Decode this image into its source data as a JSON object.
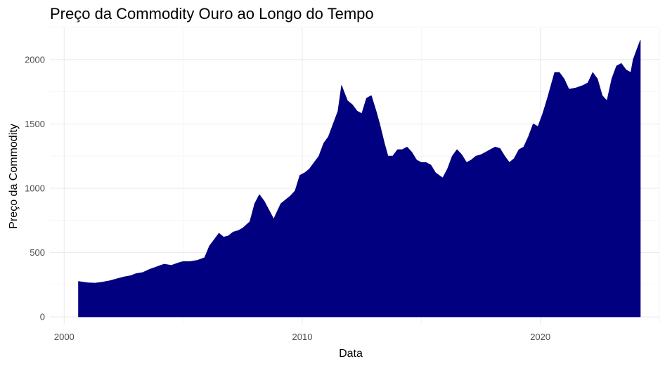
{
  "chart_data": {
    "type": "area",
    "title": "Preço da Commodity Ouro ao Longo do Tempo",
    "xlabel": "Data",
    "ylabel": "Preço da Commodity",
    "x_ticks": [
      "2000",
      "2010",
      "2020"
    ],
    "y_ticks": [
      0,
      500,
      1000,
      1500,
      2000
    ],
    "xlim": [
      1999.4,
      2025.0
    ],
    "ylim": [
      -60,
      2245
    ],
    "grid": true,
    "legend": "none",
    "fill_color": "#000080",
    "series": [
      {
        "x": [
          2000.6,
          2000.8,
          2001.0,
          2001.3,
          2001.6,
          2001.9,
          2002.2,
          2002.5,
          2002.8,
          2003.0,
          2003.3,
          2003.6,
          2003.9,
          2004.2,
          2004.5,
          2004.8,
          2005.0,
          2005.3,
          2005.6,
          2005.9,
          2006.1,
          2006.3,
          2006.5,
          2006.7,
          2006.9,
          2007.1,
          2007.3,
          2007.5,
          2007.8,
          2008.0,
          2008.2,
          2008.4,
          2008.6,
          2008.8,
          2008.9,
          2009.1,
          2009.3,
          2009.5,
          2009.7,
          2009.9,
          2010.1,
          2010.3,
          2010.5,
          2010.7,
          2010.9,
          2011.1,
          2011.3,
          2011.5,
          2011.65,
          2011.75,
          2011.9,
          2012.1,
          2012.3,
          2012.5,
          2012.7,
          2012.9,
          2013.1,
          2013.25,
          2013.45,
          2013.6,
          2013.8,
          2014.0,
          2014.2,
          2014.4,
          2014.6,
          2014.8,
          2015.0,
          2015.2,
          2015.4,
          2015.6,
          2015.9,
          2016.1,
          2016.3,
          2016.5,
          2016.7,
          2016.9,
          2017.1,
          2017.3,
          2017.5,
          2017.7,
          2017.9,
          2018.1,
          2018.3,
          2018.5,
          2018.7,
          2018.9,
          2019.1,
          2019.3,
          2019.5,
          2019.7,
          2019.9,
          2020.1,
          2020.3,
          2020.6,
          2020.8,
          2021.0,
          2021.2,
          2021.5,
          2021.8,
          2022.0,
          2022.2,
          2022.4,
          2022.6,
          2022.8,
          2023.0,
          2023.2,
          2023.4,
          2023.6,
          2023.8,
          2023.9,
          2024.0,
          2024.2
        ],
        "values": [
          275,
          270,
          265,
          262,
          270,
          280,
          295,
          310,
          320,
          335,
          345,
          370,
          390,
          410,
          400,
          420,
          430,
          430,
          440,
          460,
          550,
          600,
          650,
          620,
          630,
          660,
          670,
          690,
          740,
          880,
          950,
          900,
          830,
          760,
          800,
          880,
          910,
          940,
          980,
          1100,
          1120,
          1150,
          1200,
          1250,
          1350,
          1400,
          1500,
          1600,
          1800,
          1750,
          1680,
          1650,
          1600,
          1580,
          1700,
          1720,
          1600,
          1500,
          1350,
          1250,
          1250,
          1300,
          1300,
          1320,
          1280,
          1220,
          1200,
          1200,
          1180,
          1120,
          1080,
          1150,
          1250,
          1300,
          1260,
          1200,
          1220,
          1250,
          1260,
          1280,
          1300,
          1320,
          1310,
          1250,
          1200,
          1230,
          1300,
          1320,
          1400,
          1500,
          1480,
          1580,
          1700,
          1900,
          1900,
          1850,
          1770,
          1780,
          1800,
          1820,
          1900,
          1850,
          1720,
          1680,
          1850,
          1950,
          1970,
          1920,
          1900,
          2000,
          2050,
          2150
        ]
      }
    ]
  }
}
